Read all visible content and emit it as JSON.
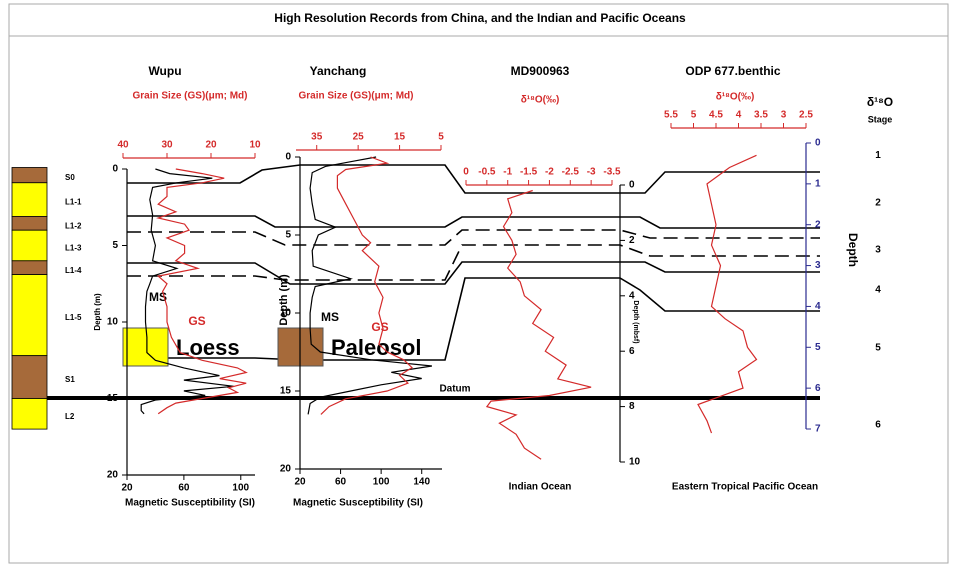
{
  "title": "High Resolution Records from China, and the Indian and Pacific Oceans",
  "datum": "Datum",
  "stratigraphy": {
    "layers": [
      {
        "label": "S0",
        "kind": "Paleosol",
        "top": -0.1,
        "bottom": 0.9
      },
      {
        "label": "L1-1",
        "kind": "Loess",
        "top": 0.9,
        "bottom": 3.1
      },
      {
        "label": "L1-2",
        "kind": "Paleosol",
        "top": 3.1,
        "bottom": 4.0
      },
      {
        "label": "L1-3",
        "kind": "Loess",
        "top": 4.0,
        "bottom": 6.0
      },
      {
        "label": "L1-4",
        "kind": "Paleosol",
        "top": 6.0,
        "bottom": 6.9
      },
      {
        "label": "L1-5",
        "kind": "Loess",
        "top": 6.9,
        "bottom": 12.2
      },
      {
        "label": "S1",
        "kind": "Paleosol",
        "top": 12.2,
        "bottom": 15.0
      },
      {
        "label": "L2",
        "kind": "Loess",
        "top": 15.0,
        "bottom": 17.0
      }
    ]
  },
  "legend": [
    {
      "label": "Loess",
      "color": "#ffff00"
    },
    {
      "label": "Paleosol",
      "color": "#a66a3a"
    }
  ],
  "stages": {
    "title": "δ¹⁸O",
    "subtitle": "Stage",
    "labels": [
      "1",
      "2",
      "3",
      "4",
      "5",
      "6"
    ],
    "depths": [
      0.3,
      1.47,
      2.62,
      3.6,
      5.02,
      6.9
    ]
  },
  "chart_data": [
    {
      "type": "line",
      "title": "Wupu",
      "subtitle": "Grain Size (GS)(μm; Md)",
      "depth_label": "Depth (m)",
      "ylim": [
        0,
        20
      ],
      "yticks": [
        0,
        5,
        10,
        15,
        20
      ],
      "depth_color": "#000000",
      "top_axis": {
        "lim": [
          40,
          10
        ],
        "ticks": [
          40,
          30,
          20,
          10
        ],
        "color": "#d42a2a"
      },
      "bottom_axis": {
        "label": "Magnetic Susceptibility (SI)",
        "lim": [
          20,
          110
        ],
        "ticks": [
          20,
          60,
          100
        ],
        "color": "#000000"
      },
      "series": [
        {
          "name": "MS",
          "color": "#000000",
          "axis": "bottom",
          "depth": [
            0,
            0.3,
            0.6,
            0.9,
            1.2,
            2,
            3,
            4,
            5,
            6,
            6.5,
            7,
            7.5,
            8,
            9,
            10,
            11,
            12,
            12.5,
            13,
            13.5,
            13.8,
            14.2,
            14.5,
            14.8,
            15.1,
            15.4,
            15.8,
            16
          ],
          "values": [
            40,
            50,
            80,
            55,
            38,
            36,
            38,
            37,
            40,
            38,
            55,
            38,
            36,
            34,
            33,
            33,
            34,
            34,
            40,
            60,
            85,
            60,
            95,
            60,
            75,
            40,
            30,
            30,
            32
          ]
        },
        {
          "name": "GS",
          "color": "#d42a2a",
          "axis": "top",
          "depth": [
            0,
            0.3,
            0.6,
            0.9,
            1.2,
            1.8,
            2.3,
            2.8,
            3.2,
            3.6,
            4.0,
            4.5,
            5.0,
            5.5,
            6.0,
            6.5,
            7.0,
            7.5,
            8.0,
            9,
            10,
            11,
            12,
            12.5,
            13,
            13.3,
            13.7,
            14,
            14.3,
            14.6,
            15,
            15.3,
            15.6,
            16
          ],
          "values": [
            28,
            22,
            17,
            22,
            30,
            30,
            32,
            28,
            32,
            26,
            25,
            30,
            26,
            26,
            28,
            23,
            32,
            30,
            31,
            30,
            30,
            29,
            27,
            22,
            14,
            12,
            18,
            12,
            16,
            14,
            22,
            28,
            30,
            32
          ]
        }
      ]
    },
    {
      "type": "line",
      "title": "Yanchang",
      "subtitle": "Grain Size (GS)(μm; Md)",
      "depth_label": "Depth (m)",
      "ylim": [
        0,
        20
      ],
      "yticks": [
        0,
        5,
        10,
        15,
        20
      ],
      "depth_color": "#000000",
      "top_axis": {
        "lim": [
          40,
          5
        ],
        "ticks": [
          35,
          25,
          15,
          5
        ],
        "color": "#d42a2a"
      },
      "bottom_axis": {
        "label": "Magnetic Susceptibility (SI)",
        "lim": [
          20,
          160
        ],
        "ticks": [
          20,
          60,
          100,
          140
        ],
        "color": "#000000"
      },
      "series": [
        {
          "name": "MS",
          "color": "#000000",
          "axis": "bottom",
          "depth": [
            0,
            0.3,
            0.6,
            1,
            2,
            3,
            4,
            4.5,
            5,
            6,
            7,
            7.8,
            8.3,
            9,
            10,
            11,
            12,
            12.5,
            13,
            13.4,
            13.8,
            14.2,
            14.6,
            15,
            15.4,
            15.8,
            16.5
          ],
          "values": [
            95,
            70,
            45,
            32,
            30,
            32,
            35,
            55,
            38,
            32,
            33,
            70,
            35,
            32,
            30,
            30,
            31,
            40,
            90,
            150,
            110,
            140,
            100,
            70,
            40,
            30,
            28
          ]
        },
        {
          "name": "GS",
          "color": "#d42a2a",
          "axis": "top",
          "depth": [
            0,
            0.4,
            0.8,
            1.2,
            2,
            3,
            4,
            5,
            5.5,
            6,
            7,
            8,
            9,
            10,
            11,
            12,
            12.5,
            13,
            13.5,
            14,
            14.5,
            15,
            15.5,
            16,
            16.5
          ],
          "values": [
            22,
            18,
            28,
            30,
            30,
            28,
            26,
            24,
            22,
            24,
            20,
            21,
            19,
            20,
            19,
            20,
            18,
            14,
            12,
            15,
            13,
            18,
            28,
            32,
            34
          ]
        }
      ]
    },
    {
      "type": "line",
      "title": "MD900963",
      "subtitle": "δ¹⁸O(‰)",
      "depth_label": "Depth (mbsf)",
      "region": "Indian Ocean",
      "ylim": [
        0,
        10
      ],
      "yticks": [
        0,
        2,
        4,
        6,
        8,
        10
      ],
      "depth_color": "#000000",
      "top_axis": {
        "lim": [
          0,
          -3.5
        ],
        "ticks": [
          0,
          -0.5,
          -1,
          -1.5,
          -2,
          -2.5,
          -3,
          -3.5
        ],
        "color": "#d42a2a"
      },
      "series": [
        {
          "color": "#d42a2a",
          "axis": "top",
          "depth": [
            0.2,
            0.5,
            1,
            1.5,
            2,
            2.5,
            3,
            3.5,
            4,
            4.5,
            5,
            5.5,
            6,
            6.5,
            7,
            7.3,
            7.6,
            7.8,
            8.0,
            8.3,
            8.6,
            9,
            9.5,
            9.9
          ],
          "values": [
            -1.6,
            -1.0,
            -1.1,
            -0.9,
            -1.1,
            -1.2,
            -1.0,
            -1.3,
            -1.4,
            -1.8,
            -1.6,
            -2.1,
            -1.9,
            -2.4,
            -2.2,
            -3.0,
            -2.0,
            -0.6,
            -0.5,
            -1.2,
            -0.8,
            -1.2,
            -1.4,
            -1.8
          ]
        }
      ]
    },
    {
      "type": "line",
      "title": "ODP 677.benthic",
      "subtitle": "δ¹⁸O(‰)",
      "depth_label": "Depth",
      "region": "Eastern Tropical Pacific Ocean",
      "ylim": [
        0,
        7
      ],
      "yticks": [
        0,
        1,
        2,
        3,
        4,
        5,
        6,
        7
      ],
      "depth_color": "#2b2b8f",
      "top_axis": {
        "lim": [
          5.5,
          2.5
        ],
        "ticks": [
          5.5,
          5,
          4.5,
          4,
          3.5,
          3,
          2.5
        ],
        "color": "#d42a2a"
      },
      "series": [
        {
          "color": "#d42a2a",
          "axis": "top",
          "depth": [
            0.3,
            0.6,
            1,
            1.5,
            2,
            2.5,
            3,
            3.5,
            4,
            4.3,
            4.6,
            5,
            5.3,
            5.6,
            6,
            6.2,
            6.4,
            6.8,
            7.1
          ],
          "values": [
            3.6,
            4.2,
            4.7,
            4.6,
            4.5,
            4.6,
            4.4,
            4.5,
            4.6,
            4.3,
            3.9,
            3.8,
            3.6,
            4.0,
            3.9,
            4.4,
            4.9,
            4.7,
            4.6
          ]
        }
      ]
    }
  ]
}
